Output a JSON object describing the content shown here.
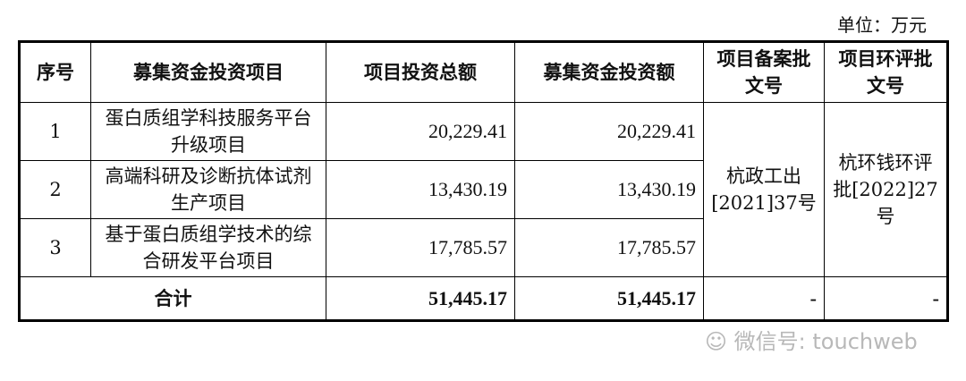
{
  "unit": "单位：万元",
  "headers": [
    "序号",
    "募集资金投资项目",
    "项目投资总额",
    "募集资金投资额",
    "项目备案批文号",
    "项目环评批文号"
  ],
  "rows": [
    {
      "no": "1",
      "project": "蛋白质组学科技服务平台升级项目",
      "total": "20,229.41",
      "raised": "20,229.41"
    },
    {
      "no": "2",
      "project": "高端科研及诊断抗体试剂生产项目",
      "total": "13,430.19",
      "raised": "13,430.19"
    },
    {
      "no": "3",
      "project": "基于蛋白质组学技术的综合研发平台项目",
      "total": "17,785.57",
      "raised": "17,785.57"
    }
  ],
  "filing_no": "杭政工出[2021]37号",
  "eia_no": "杭环钱环评批[2022]27号",
  "total_row": {
    "label": "合计",
    "total": "51,445.17",
    "raised": "51,445.17",
    "filing": "-",
    "eia": "-"
  },
  "watermark": "微信号: touchweb"
}
